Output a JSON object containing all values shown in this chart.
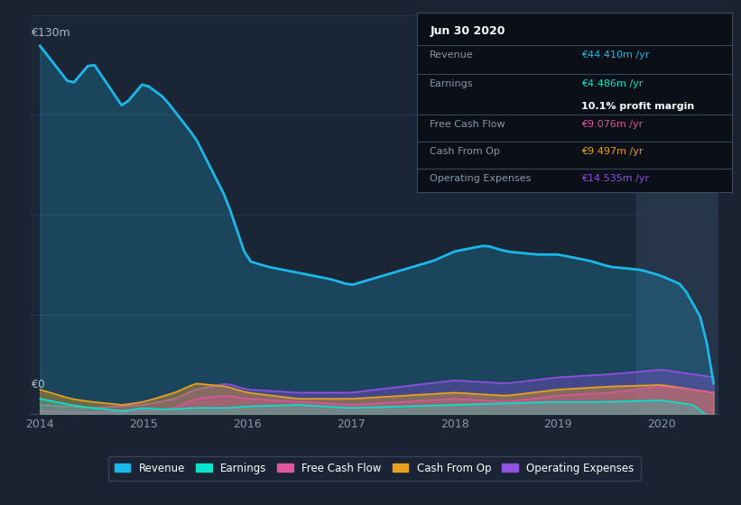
{
  "bg_color": "#1a2332",
  "plot_bg_color": "#1a2535",
  "highlight_bg": "#2a3a50",
  "grid_color": "#2a3a55",
  "ylabel_text": "€130m",
  "y0_text": "€0",
  "xlabel_ticks": [
    "2014",
    "2015",
    "2016",
    "2017",
    "2018",
    "2019",
    "2020"
  ],
  "ylim": [
    0,
    130
  ],
  "revenue_color": "#1ab8e8",
  "earnings_color": "#00e5cc",
  "fcf_color": "#e055a0",
  "cashfromop_color": "#e8a020",
  "opex_color": "#9050e0",
  "legend_bg": "#1a2535",
  "legend_border": "#3a4a60",
  "tooltip_bg": "#0a0f18",
  "tooltip_border": "#3a4a60",
  "tooltip_title": "Jun 30 2020",
  "tooltip_revenue": "€44.410m /yr",
  "tooltip_earnings": "€4.486m /yr",
  "tooltip_margin": "10.1% profit margin",
  "tooltip_fcf": "€9.076m /yr",
  "tooltip_cashop": "€9.497m /yr",
  "tooltip_opex": "€14.535m /yr",
  "legend_items": [
    "Revenue",
    "Earnings",
    "Free Cash Flow",
    "Cash From Op",
    "Operating Expenses"
  ]
}
